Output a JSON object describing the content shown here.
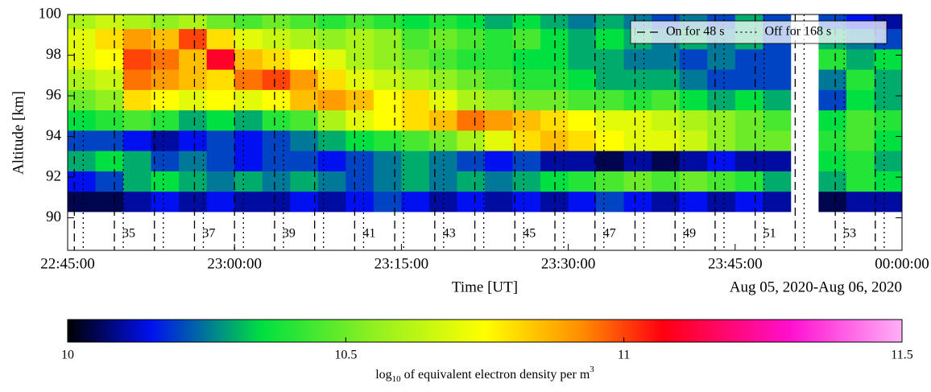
{
  "chart_data": {
    "type": "heatmap",
    "ylabel": "Altitude [km]",
    "xlabel": "Time [UT]",
    "date_label": "Aug 05, 2020-Aug 06, 2020",
    "xlim": [
      0,
      75
    ],
    "xticks": [
      {
        "value": 0,
        "label": "22:45:00"
      },
      {
        "value": 15,
        "label": "23:00:00"
      },
      {
        "value": 30,
        "label": "23:15:00"
      },
      {
        "value": 45,
        "label": "23:30:00"
      },
      {
        "value": 60,
        "label": "23:45:00"
      },
      {
        "value": 75,
        "label": "00:00:00"
      }
    ],
    "ylim": [
      88.4,
      100
    ],
    "yticks": [
      90,
      92,
      94,
      96,
      98,
      100
    ],
    "x": [
      1.25,
      3.75,
      6.25,
      8.75,
      11.25,
      13.75,
      16.25,
      18.75,
      21.25,
      23.75,
      26.25,
      28.75,
      31.25,
      33.75,
      36.25,
      38.75,
      41.25,
      43.75,
      46.25,
      48.75,
      51.25,
      53.75,
      56.25,
      58.75,
      61.25,
      63.75,
      66.25,
      68.75,
      71.25,
      73.75
    ],
    "y": [
      90.8,
      91.8,
      92.8,
      93.8,
      94.8,
      95.8,
      96.8,
      97.8,
      98.8,
      99.8
    ],
    "z": [
      [
        10.05,
        10.05,
        10.1,
        10.15,
        10.1,
        10.15,
        10.1,
        10.1,
        10.15,
        10.1,
        10.15,
        10.2,
        10.15,
        10.1,
        10.15,
        10.1,
        10.15,
        10.1,
        10.15,
        10.2,
        10.15,
        10.1,
        10.15,
        10.1,
        10.15,
        10.1,
        null,
        10.05,
        10.1,
        10.1
      ],
      [
        10.15,
        10.2,
        10.3,
        10.35,
        10.3,
        10.25,
        10.3,
        10.25,
        10.3,
        10.25,
        10.2,
        10.25,
        10.3,
        10.25,
        10.3,
        10.25,
        10.3,
        10.35,
        10.4,
        10.45,
        10.5,
        10.45,
        10.5,
        10.45,
        10.4,
        10.3,
        null,
        10.3,
        10.4,
        10.35
      ],
      [
        10.3,
        10.35,
        10.3,
        10.2,
        10.25,
        10.2,
        10.15,
        10.2,
        10.2,
        10.15,
        10.2,
        10.25,
        10.3,
        10.25,
        10.2,
        10.15,
        10.2,
        10.1,
        10.1,
        10.05,
        10.1,
        10.05,
        10.1,
        10.15,
        10.1,
        10.1,
        null,
        10.35,
        10.4,
        10.3
      ],
      [
        10.2,
        10.2,
        10.15,
        10.1,
        10.15,
        10.2,
        10.15,
        10.2,
        10.25,
        10.3,
        10.35,
        10.4,
        10.45,
        10.5,
        10.6,
        10.7,
        10.8,
        10.85,
        10.8,
        10.75,
        10.7,
        10.7,
        10.65,
        10.55,
        10.5,
        10.5,
        null,
        10.4,
        10.45,
        10.35
      ],
      [
        10.35,
        10.4,
        10.45,
        10.4,
        10.3,
        10.35,
        10.3,
        10.4,
        10.45,
        10.6,
        10.7,
        10.75,
        10.8,
        10.85,
        10.95,
        10.9,
        10.85,
        10.8,
        10.75,
        10.7,
        10.7,
        10.65,
        10.6,
        10.55,
        10.5,
        10.45,
        null,
        10.35,
        10.45,
        10.4
      ],
      [
        10.5,
        10.55,
        10.8,
        10.75,
        10.7,
        10.75,
        10.7,
        10.75,
        10.85,
        10.9,
        10.85,
        10.75,
        10.8,
        10.7,
        10.6,
        10.55,
        10.5,
        10.5,
        10.45,
        10.45,
        10.4,
        10.45,
        10.35,
        10.3,
        10.35,
        10.3,
        null,
        10.2,
        10.35,
        10.3
      ],
      [
        10.6,
        10.65,
        10.95,
        10.9,
        10.85,
        10.8,
        10.95,
        11.0,
        10.9,
        10.8,
        10.7,
        10.65,
        10.6,
        10.55,
        10.5,
        10.45,
        10.4,
        10.4,
        10.35,
        10.3,
        10.3,
        10.3,
        10.25,
        10.2,
        10.2,
        10.2,
        null,
        10.25,
        10.4,
        10.3
      ],
      [
        10.7,
        10.75,
        11.0,
        10.95,
        10.85,
        11.1,
        10.85,
        10.8,
        10.75,
        10.7,
        10.6,
        10.55,
        10.5,
        10.45,
        10.4,
        10.4,
        10.35,
        10.35,
        10.3,
        10.3,
        10.25,
        10.25,
        10.2,
        10.25,
        10.2,
        10.2,
        null,
        10.4,
        10.3,
        10.35
      ],
      [
        10.7,
        10.8,
        10.9,
        10.85,
        11.0,
        10.8,
        10.7,
        10.65,
        10.6,
        10.55,
        10.6,
        10.55,
        10.45,
        10.5,
        10.45,
        10.4,
        10.45,
        10.35,
        10.3,
        10.35,
        10.3,
        10.25,
        10.3,
        10.25,
        10.3,
        10.2,
        null,
        10.3,
        10.25,
        10.2
      ],
      [
        10.6,
        10.65,
        10.6,
        10.55,
        10.6,
        10.5,
        10.45,
        10.5,
        10.45,
        10.4,
        10.45,
        10.4,
        10.35,
        10.4,
        10.35,
        10.3,
        10.35,
        10.3,
        10.25,
        10.3,
        10.25,
        10.2,
        10.25,
        10.2,
        10.3,
        10.2,
        null,
        10.2,
        10.15,
        10.1
      ]
    ],
    "lines": [
      {
        "name": "On for 48 s",
        "style": "dashed",
        "color": "#000000",
        "x": [
          0.6,
          4.2,
          7.8,
          11.4,
          15,
          18.6,
          22.2,
          25.8,
          29.4,
          33,
          36.6,
          40.2,
          43.8,
          47.4,
          51,
          54.6,
          58.2,
          61.8,
          65.4,
          69,
          72.6
        ]
      },
      {
        "name": "Off for 168 s",
        "style": "dotted",
        "color": "#000000",
        "x": [
          1.4,
          5,
          8.6,
          12.2,
          15.8,
          19.4,
          23,
          26.6,
          30.2,
          33.8,
          37.4,
          41,
          44.6,
          48.2,
          51.8,
          55.4,
          59,
          62.6,
          66.2,
          69.8,
          73.4
        ]
      }
    ],
    "legend": "upper right",
    "cycle_labels": {
      "x": [
        5.5,
        12.7,
        19.9,
        27.1,
        34.3,
        41.5,
        48.7,
        55.9,
        63.1,
        70.3
      ],
      "y": 89.2,
      "labels": [
        35,
        37,
        39,
        41,
        43,
        45,
        47,
        49,
        51,
        53
      ]
    },
    "colorbar": {
      "clim": [
        10,
        11.5
      ],
      "ticks": [
        10,
        10.5,
        11,
        11.5
      ],
      "label_parts": [
        "log",
        "10",
        " of equivalent electron density per m",
        "3"
      ],
      "colormap": [
        {
          "value": 10,
          "color": "#000000"
        },
        {
          "value": 10.15,
          "color": "#0010f0"
        },
        {
          "value": 10.35,
          "color": "#00e040"
        },
        {
          "value": 10.55,
          "color": "#90f020"
        },
        {
          "value": 10.75,
          "color": "#ffff00"
        },
        {
          "value": 10.92,
          "color": "#ff9000"
        },
        {
          "value": 11.07,
          "color": "#ff0010"
        },
        {
          "value": 11.3,
          "color": "#ff10d0"
        },
        {
          "value": 11.5,
          "color": "#ffb0f8"
        }
      ]
    }
  }
}
